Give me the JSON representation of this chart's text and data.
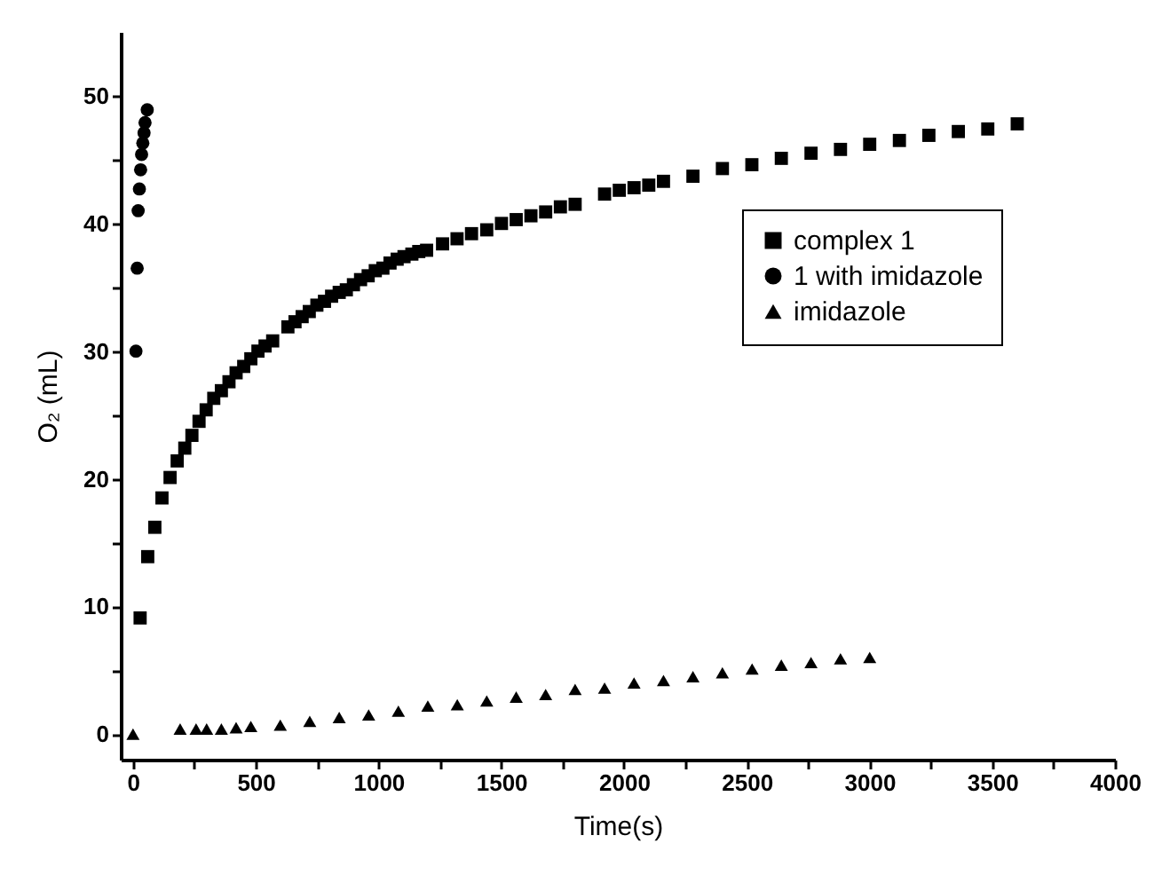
{
  "chart_data": {
    "type": "scatter",
    "xlabel": "Time(s)",
    "ylabel": "O₂ (mL)",
    "xlim": [
      -50,
      4000
    ],
    "ylim": [
      -2,
      55
    ],
    "xticks": [
      0,
      {
        "value": 250,
        "label": null
      },
      500,
      {
        "value": 750,
        "label": null
      },
      1000,
      {
        "value": 1250,
        "label": null
      },
      1500,
      {
        "value": 1750,
        "label": null
      },
      2000,
      {
        "value": 2250,
        "label": null
      },
      2500,
      {
        "value": 2750,
        "label": null
      },
      3000,
      {
        "value": 3250,
        "label": null
      },
      3500,
      {
        "value": 3750,
        "label": null
      },
      4000
    ],
    "yticks": [
      0,
      {
        "value": 5,
        "label": null
      },
      10,
      {
        "value": 15,
        "label": null
      },
      20,
      {
        "value": 25,
        "label": null
      },
      30,
      {
        "value": 35,
        "label": null
      },
      40,
      {
        "value": 45,
        "label": null
      },
      50
    ],
    "grid": false,
    "legend": "top right",
    "series": [
      {
        "name": "complex 1",
        "color": "#000000",
        "marker": "square",
        "x": [
          29,
          60,
          89,
          118,
          151,
          180,
          211,
          240,
          269,
          298,
          329,
          360,
          391,
          420,
          451,
          480,
          509,
          538,
          569,
          631,
          660,
          689,
          718,
          749,
          780,
          809,
          840,
          869,
          898,
          927,
          958,
          987,
          1018,
          1047,
          1076,
          1104,
          1136,
          1164,
          1196,
          1261,
          1320,
          1379,
          1441,
          1501,
          1561,
          1621,
          1681,
          1741,
          1801,
          1921,
          1981,
          2041,
          2101,
          2161,
          2281,
          2401,
          2521,
          2641,
          2762,
          2882,
          3001,
          3122,
          3242,
          3362,
          3482,
          3602
        ],
        "values": [
          9.1,
          13.9,
          16.2,
          18.5,
          20.1,
          21.4,
          22.4,
          23.4,
          24.5,
          25.4,
          26.3,
          26.9,
          27.6,
          28.3,
          28.8,
          29.4,
          30.0,
          30.4,
          30.8,
          31.9,
          32.3,
          32.7,
          33.1,
          33.6,
          33.9,
          34.3,
          34.6,
          34.8,
          35.2,
          35.6,
          35.9,
          36.3,
          36.5,
          36.9,
          37.2,
          37.4,
          37.6,
          37.8,
          37.9,
          38.4,
          38.8,
          39.2,
          39.5,
          40.0,
          40.3,
          40.6,
          40.9,
          41.3,
          41.5,
          42.3,
          42.6,
          42.8,
          43.0,
          43.3,
          43.7,
          44.3,
          44.6,
          45.1,
          45.5,
          45.8,
          46.2,
          46.5,
          46.9,
          47.2,
          47.4,
          47.8
        ]
      },
      {
        "name": "1 with imidazole",
        "color": "#000000",
        "marker": "circle",
        "x": [
          12,
          17,
          21,
          26,
          31,
          35,
          40,
          45,
          49,
          58
        ],
        "values": [
          30.0,
          36.5,
          41.0,
          42.7,
          44.2,
          45.4,
          46.3,
          47.1,
          47.9,
          48.9
        ]
      },
      {
        "name": "imidazole",
        "color": "#000000",
        "marker": "triangle",
        "x": [
          0,
          192,
          257,
          300,
          360,
          420,
          480,
          600,
          720,
          840,
          960,
          1081,
          1201,
          1321,
          1441,
          1561,
          1681,
          1801,
          1921,
          2041,
          2161,
          2281,
          2401,
          2522,
          2641,
          2762,
          2882,
          3001
        ],
        "values": [
          0.0,
          0.4,
          0.4,
          0.4,
          0.4,
          0.5,
          0.6,
          0.7,
          1.0,
          1.3,
          1.5,
          1.8,
          2.2,
          2.3,
          2.6,
          2.9,
          3.1,
          3.5,
          3.6,
          4.0,
          4.2,
          4.5,
          4.8,
          5.1,
          5.4,
          5.6,
          5.9,
          6.0
        ]
      }
    ]
  }
}
